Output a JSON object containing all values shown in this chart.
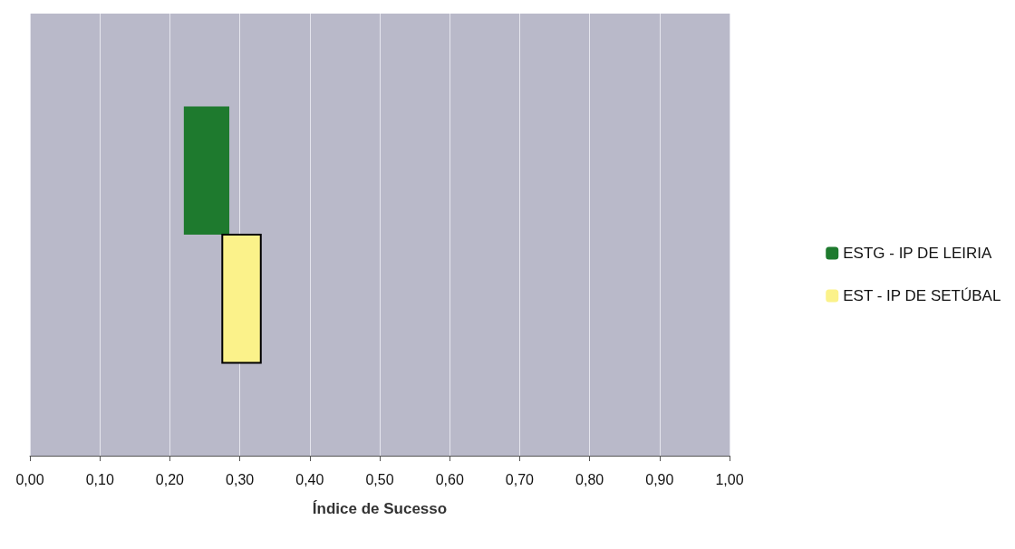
{
  "chart_data": {
    "type": "bar",
    "orientation": "horizontal",
    "xlabel": "Índice de Sucesso",
    "categories": [
      null
    ],
    "series": [
      {
        "name": "ESTG - IP DE LEIRIA",
        "color": "#1e7a2e",
        "base": [
          0.22
        ],
        "values": [
          0.065
        ]
      },
      {
        "name": "EST - IP DE SETÚBAL",
        "color": "#fbf28a",
        "base": [
          0.275
        ],
        "values": [
          0.055
        ]
      }
    ],
    "xlim": [
      0,
      1
    ],
    "xticks": [
      {
        "value": 0,
        "label": "0,00"
      },
      {
        "value": 0.1,
        "label": "0,10"
      },
      {
        "value": 0.2,
        "label": "0,20"
      },
      {
        "value": 0.3,
        "label": "0,30"
      },
      {
        "value": 0.4,
        "label": "0,40"
      },
      {
        "value": 0.5,
        "label": "0,50"
      },
      {
        "value": 0.6,
        "label": "0,60"
      },
      {
        "value": 0.7,
        "label": "0,70"
      },
      {
        "value": 0.8,
        "label": "0,80"
      },
      {
        "value": 0.9,
        "label": "0,90"
      },
      {
        "value": 1,
        "label": "1,00"
      }
    ],
    "grid": "x",
    "legend": "right"
  }
}
